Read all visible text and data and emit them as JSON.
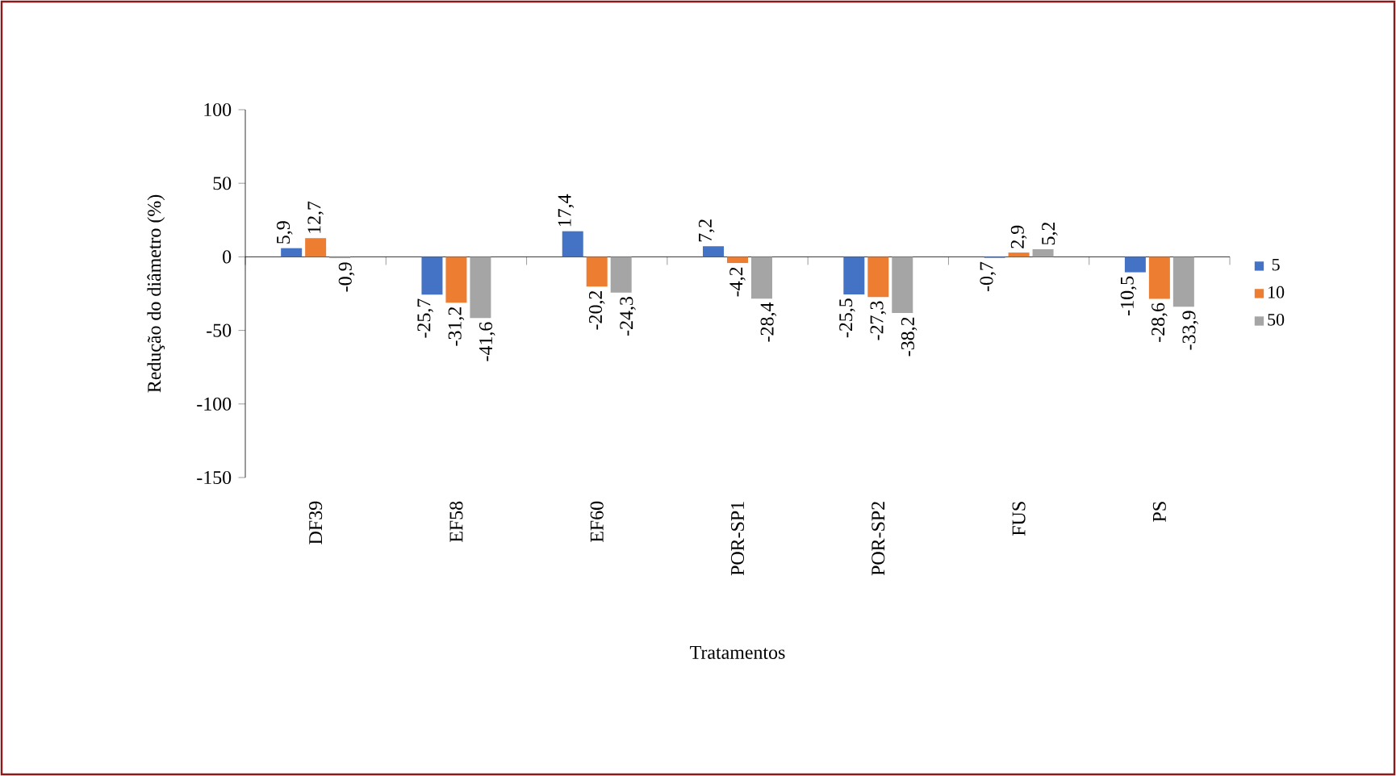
{
  "chart_data": {
    "type": "bar",
    "xlabel": "Tratamentos",
    "ylabel": "Redução do diâmetro (%)",
    "categories": [
      "DF39",
      "EF58",
      "EF60",
      "POR-SP1",
      "POR-SP2",
      "FUS",
      "PS"
    ],
    "series": [
      {
        "name": "5",
        "color": "#4472c4",
        "values": [
          5.9,
          -25.7,
          17.4,
          7.2,
          -25.5,
          -0.7,
          -10.5
        ],
        "value_labels": [
          "5,9",
          "-25,7",
          "17,4",
          "7,2",
          "-25,5",
          "-0,7",
          "-10,5"
        ]
      },
      {
        "name": "10",
        "color": "#ed7d31",
        "values": [
          12.7,
          -31.2,
          -20.2,
          -4.2,
          -27.3,
          2.9,
          -28.6
        ],
        "value_labels": [
          "12,7",
          "-31,2",
          "-20,2",
          "-4,2",
          "-27,3",
          "2,9",
          "-28,6"
        ]
      },
      {
        "name": "50",
        "color": "#a5a5a5",
        "values": [
          -0.9,
          -41.6,
          -24.3,
          -28.4,
          -38.2,
          5.2,
          -33.9
        ],
        "value_labels": [
          "-0,9",
          "-41,6",
          "-24,3",
          "-28,4",
          "-38,2",
          "5,2",
          "-33,9"
        ]
      }
    ],
    "ylim": [
      -150,
      100
    ],
    "yticks": [
      -150,
      -100,
      -50,
      0,
      50,
      100
    ],
    "legend": "right"
  }
}
